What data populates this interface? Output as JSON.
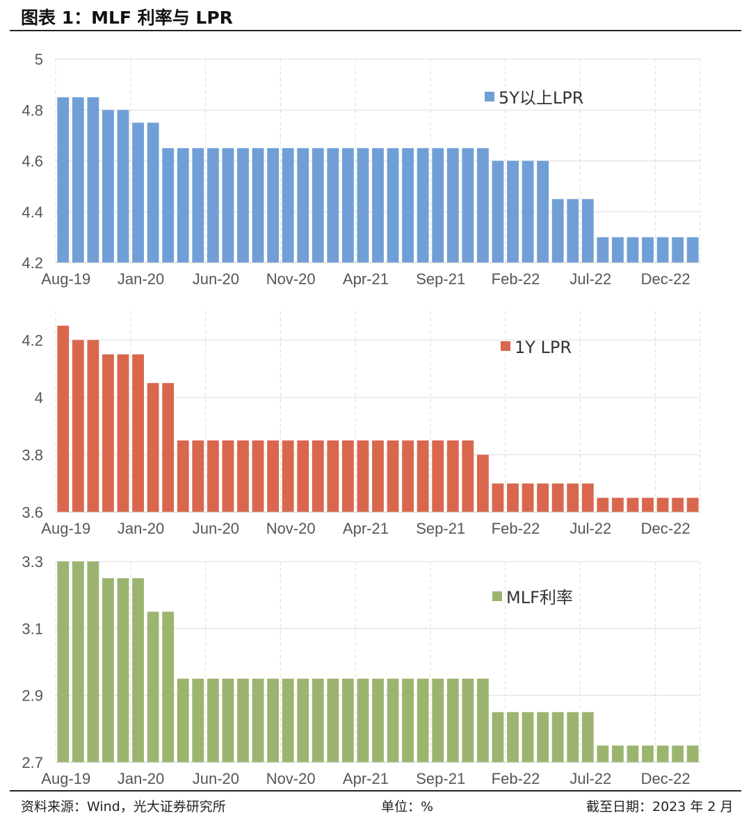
{
  "figure": {
    "title": "图表 1：MLF 利率与 LPR",
    "source": "资料来源：Wind，光大证券研究所",
    "unit": "单位：%",
    "as_of": "截至日期：2023 年 2 月"
  },
  "chart_data": [
    {
      "type": "bar",
      "series": [
        {
          "name": "5Y以上LPR",
          "color": "#6f9fd6",
          "values": [
            4.85,
            4.85,
            4.85,
            4.8,
            4.8,
            4.75,
            4.75,
            4.65,
            4.65,
            4.65,
            4.65,
            4.65,
            4.65,
            4.65,
            4.65,
            4.65,
            4.65,
            4.65,
            4.65,
            4.65,
            4.65,
            4.65,
            4.65,
            4.65,
            4.65,
            4.65,
            4.65,
            4.65,
            4.65,
            4.6,
            4.6,
            4.6,
            4.6,
            4.45,
            4.45,
            4.45,
            4.3,
            4.3,
            4.3,
            4.3,
            4.3,
            4.3,
            4.3
          ]
        }
      ],
      "x_ticks": [
        "Aug-19",
        "Jan-20",
        "Jun-20",
        "Nov-20",
        "Apr-21",
        "Sep-21",
        "Feb-22",
        "Jul-22",
        "Dec-22"
      ],
      "y_ticks": [
        "4.2",
        "4.4",
        "4.6",
        "4.8",
        "5"
      ],
      "ylim": [
        4.2,
        5.0
      ],
      "legend_position": "top-right",
      "grid": true
    },
    {
      "type": "bar",
      "series": [
        {
          "name": "1Y LPR",
          "color": "#d9674e",
          "values": [
            4.25,
            4.2,
            4.2,
            4.15,
            4.15,
            4.15,
            4.05,
            4.05,
            3.85,
            3.85,
            3.85,
            3.85,
            3.85,
            3.85,
            3.85,
            3.85,
            3.85,
            3.85,
            3.85,
            3.85,
            3.85,
            3.85,
            3.85,
            3.85,
            3.85,
            3.85,
            3.85,
            3.85,
            3.8,
            3.7,
            3.7,
            3.7,
            3.7,
            3.7,
            3.7,
            3.7,
            3.65,
            3.65,
            3.65,
            3.65,
            3.65,
            3.65,
            3.65
          ]
        }
      ],
      "x_ticks": [
        "Aug-19",
        "Jan-20",
        "Jun-20",
        "Nov-20",
        "Apr-21",
        "Sep-21",
        "Feb-22",
        "Jul-22",
        "Dec-22"
      ],
      "y_ticks": [
        "3.6",
        "3.8",
        "4",
        "4.2"
      ],
      "ylim": [
        3.6,
        4.3
      ],
      "legend_position": "top-right",
      "grid": true
    },
    {
      "type": "bar",
      "series": [
        {
          "name": "MLF利率",
          "color": "#9bb56f",
          "values": [
            3.3,
            3.3,
            3.3,
            3.25,
            3.25,
            3.25,
            3.15,
            3.15,
            2.95,
            2.95,
            2.95,
            2.95,
            2.95,
            2.95,
            2.95,
            2.95,
            2.95,
            2.95,
            2.95,
            2.95,
            2.95,
            2.95,
            2.95,
            2.95,
            2.95,
            2.95,
            2.95,
            2.95,
            2.95,
            2.85,
            2.85,
            2.85,
            2.85,
            2.85,
            2.85,
            2.85,
            2.75,
            2.75,
            2.75,
            2.75,
            2.75,
            2.75,
            2.75
          ]
        }
      ],
      "x_ticks": [
        "Aug-19",
        "Jan-20",
        "Jun-20",
        "Nov-20",
        "Apr-21",
        "Sep-21",
        "Feb-22",
        "Jul-22",
        "Dec-22"
      ],
      "y_ticks": [
        "2.7",
        "2.9",
        "3.1",
        "3.3"
      ],
      "ylim": [
        2.7,
        3.3
      ],
      "legend_position": "top-right",
      "grid": true
    }
  ]
}
